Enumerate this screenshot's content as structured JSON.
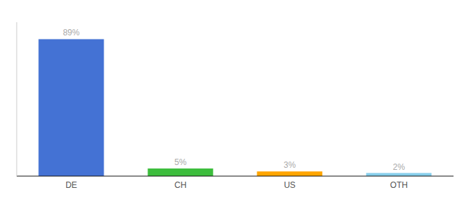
{
  "chart_data": {
    "type": "bar",
    "categories": [
      "DE",
      "CH",
      "US",
      "OTH"
    ],
    "values": [
      89,
      5,
      3,
      2
    ],
    "value_labels": [
      "89%",
      "5%",
      "3%",
      "2%"
    ],
    "colors": [
      "#4472D4",
      "#3DBD3D",
      "#FFA500",
      "#87CEEB"
    ],
    "ylim": [
      0,
      100
    ],
    "data_labels": true,
    "tick_labels": "x",
    "grid": false
  }
}
